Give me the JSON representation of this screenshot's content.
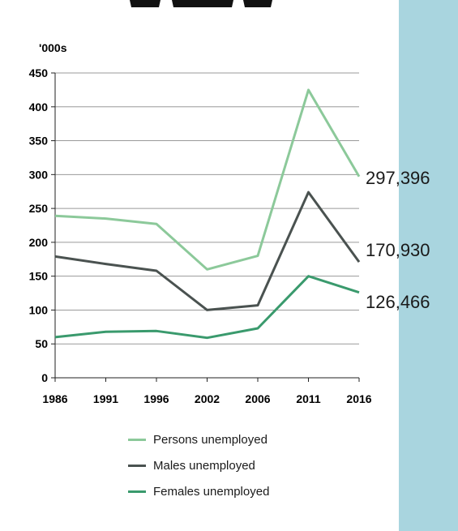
{
  "chart_data": {
    "type": "line",
    "unit_label": "'000s",
    "categories": [
      "1986",
      "1991",
      "1996",
      "2002",
      "2006",
      "2011",
      "2016"
    ],
    "ylim": [
      0,
      450
    ],
    "yticks": [
      "0",
      "50",
      "100",
      "150",
      "200",
      "250",
      "300",
      "350",
      "400",
      "450"
    ],
    "grid": true,
    "legend_position": "bottom",
    "series": [
      {
        "name": "Persons unemployed",
        "color": "#8cc99a",
        "values": [
          239,
          235,
          227,
          160,
          180,
          425,
          297
        ]
      },
      {
        "name": "Males unemployed",
        "color": "#4a5250",
        "values": [
          179,
          168,
          158,
          100,
          107,
          274,
          171
        ]
      },
      {
        "name": "Females unemployed",
        "color": "#3a9a6d",
        "values": [
          60,
          68,
          69,
          59,
          73,
          150,
          126
        ]
      }
    ],
    "annotations": [
      "297,396",
      "170,930",
      "126,466"
    ]
  }
}
